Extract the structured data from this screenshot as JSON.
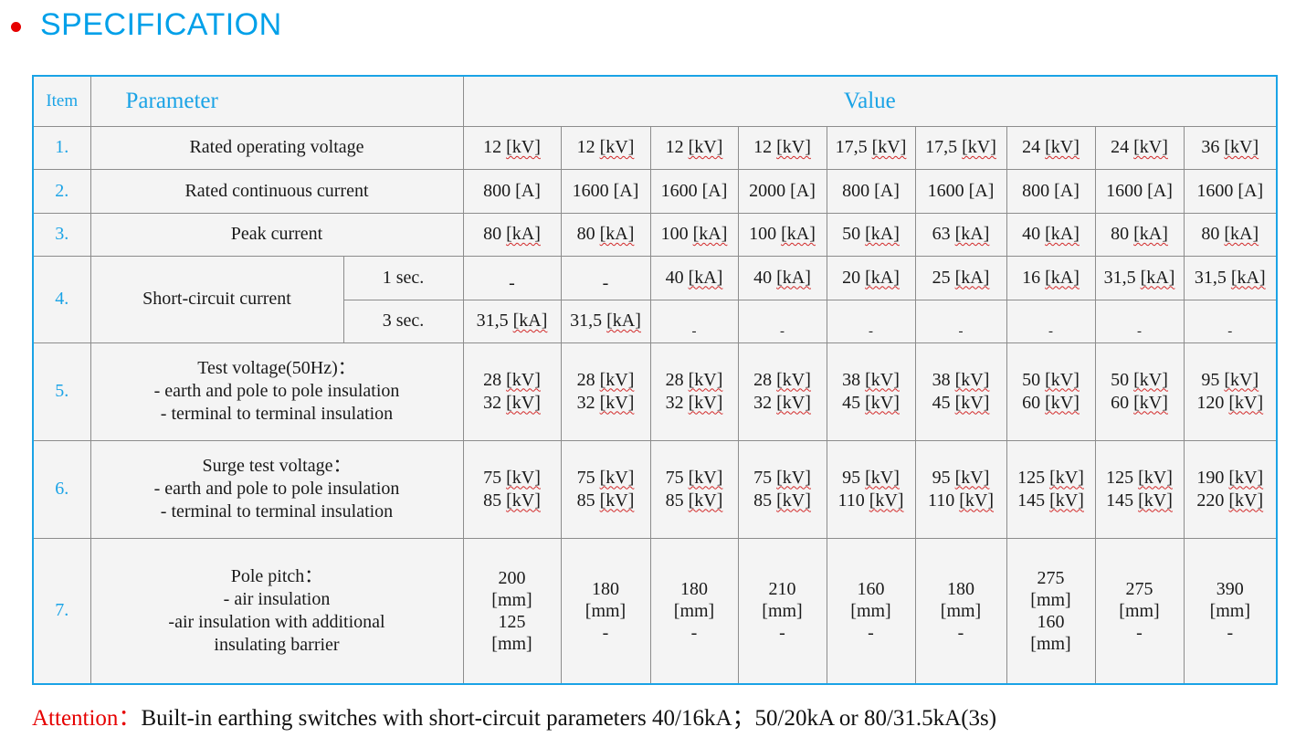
{
  "header": {
    "title": "SPECIFICATION"
  },
  "table": {
    "headers": {
      "item": "Item",
      "parameter": "Parameter",
      "value": "Value"
    },
    "rows": {
      "r1": {
        "no": "1.",
        "label": "Rated operating voltage",
        "values": [
          {
            "v": "12",
            "u": "[kV]"
          },
          {
            "v": "12",
            "u": "[kV]"
          },
          {
            "v": "12",
            "u": "[kV]"
          },
          {
            "v": "12",
            "u": "[kV]"
          },
          {
            "v": "17,5",
            "u": "[kV]"
          },
          {
            "v": "17,5",
            "u": "[kV]"
          },
          {
            "v": "24",
            "u": "[kV]"
          },
          {
            "v": "24",
            "u": "[kV]"
          },
          {
            "v": "36",
            "u": "[kV]"
          }
        ]
      },
      "r2": {
        "no": "2.",
        "label": "Rated continuous current",
        "values": [
          "800 [A]",
          "1600 [A]",
          "1600 [A]",
          "2000 [A]",
          "800 [A]",
          "1600 [A]",
          "800 [A]",
          "1600 [A]",
          "1600 [A]"
        ]
      },
      "r3": {
        "no": "3.",
        "label": "Peak current",
        "values": [
          {
            "v": "80",
            "u": "[kA]"
          },
          {
            "v": "80",
            "u": "[kA]"
          },
          {
            "v": "100",
            "u": "[kA]"
          },
          {
            "v": "100",
            "u": "[kA]"
          },
          {
            "v": "50",
            "u": "[kA]"
          },
          {
            "v": "63",
            "u": "[kA]"
          },
          {
            "v": "40",
            "u": "[kA]"
          },
          {
            "v": "80",
            "u": "[kA]"
          },
          {
            "v": "80",
            "u": "[kA]"
          }
        ]
      },
      "r4": {
        "no": "4.",
        "label": "Short-circuit current",
        "sub1": {
          "label": "1 sec.",
          "values": [
            "-",
            "-",
            {
              "v": "40",
              "u": "[kA]"
            },
            {
              "v": "40",
              "u": "[kA]"
            },
            {
              "v": "20",
              "u": "[kA]"
            },
            {
              "v": "25",
              "u": "[kA]"
            },
            {
              "v": "16",
              "u": "[kA]"
            },
            {
              "v": "31,5",
              "u": "[kA]"
            },
            {
              "v": "31,5",
              "u": "[kA]"
            }
          ]
        },
        "sub3": {
          "label": "3 sec.",
          "values": [
            {
              "v": "31,5",
              "u": "[kA]"
            },
            {
              "v": "31,5",
              "u": "[kA]"
            },
            "-",
            "-",
            "-",
            "-",
            "-",
            "-",
            "-"
          ]
        }
      },
      "r5": {
        "no": "5.",
        "lines": [
          "Test voltage(50Hz)：",
          "- earth and pole to pole insulation",
          "- terminal to terminal insulation"
        ],
        "values": [
          [
            {
              "v": "28",
              "u": "[kV]"
            },
            {
              "v": "32",
              "u": "[kV]"
            }
          ],
          [
            {
              "v": "28",
              "u": "[kV]"
            },
            {
              "v": "32",
              "u": "[kV]"
            }
          ],
          [
            {
              "v": "28",
              "u": "[kV]"
            },
            {
              "v": "32",
              "u": "[kV]"
            }
          ],
          [
            {
              "v": "28",
              "u": "[kV]"
            },
            {
              "v": "32",
              "u": "[kV]"
            }
          ],
          [
            {
              "v": "38",
              "u": "[kV]"
            },
            {
              "v": "45",
              "u": "[kV]"
            }
          ],
          [
            {
              "v": "38",
              "u": "[kV]"
            },
            {
              "v": "45",
              "u": "[kV]"
            }
          ],
          [
            {
              "v": "50",
              "u": "[kV]"
            },
            {
              "v": "60",
              "u": "[kV]"
            }
          ],
          [
            {
              "v": "50",
              "u": "[kV]"
            },
            {
              "v": "60",
              "u": "[kV]"
            }
          ],
          [
            {
              "v": "95",
              "u": "[kV]"
            },
            {
              "v": "120",
              "u": "[kV]"
            }
          ]
        ]
      },
      "r6": {
        "no": "6.",
        "lines": [
          "Surge test voltage：",
          "- earth and pole to pole insulation",
          "- terminal to terminal insulation"
        ],
        "values": [
          [
            {
              "v": "75",
              "u": "[kV]"
            },
            {
              "v": "85",
              "u": "[kV]"
            }
          ],
          [
            {
              "v": "75",
              "u": "[kV]"
            },
            {
              "v": "85",
              "u": "[kV]"
            }
          ],
          [
            {
              "v": "75",
              "u": "[kV]"
            },
            {
              "v": "85",
              "u": "[kV]"
            }
          ],
          [
            {
              "v": "75",
              "u": "[kV]"
            },
            {
              "v": "85",
              "u": "[kV]"
            }
          ],
          [
            {
              "v": "95",
              "u": "[kV]"
            },
            {
              "v": "110",
              "u": "[kV]"
            }
          ],
          [
            {
              "v": "95",
              "u": "[kV]"
            },
            {
              "v": "110",
              "u": "[kV]"
            }
          ],
          [
            {
              "v": "125",
              "u": "[kV]"
            },
            {
              "v": "145",
              "u": "[kV]"
            }
          ],
          [
            {
              "v": "125",
              "u": "[kV]"
            },
            {
              "v": "145",
              "u": "[kV]"
            }
          ],
          [
            {
              "v": "190",
              "u": "[kV]"
            },
            {
              "v": "220",
              "u": "[kV]"
            }
          ]
        ]
      },
      "r7": {
        "no": "7.",
        "lines": [
          "Pole pitch：",
          "- air  insulation",
          "-air insulation with additional",
          "insulating barrier"
        ],
        "values": [
          {
            "a": "200",
            "au": "[mm]",
            "b": "125",
            "bu": "[mm]"
          },
          {
            "a": "180",
            "au": "[mm]",
            "b": "-",
            "bu": ""
          },
          {
            "a": "180",
            "au": "[mm]",
            "b": "-",
            "bu": ""
          },
          {
            "a": "210",
            "au": "[mm]",
            "b": "-",
            "bu": ""
          },
          {
            "a": "160",
            "au": "[mm]",
            "b": "-",
            "bu": ""
          },
          {
            "a": "180",
            "au": "[mm]",
            "b": "-",
            "bu": ""
          },
          {
            "a": "275",
            "au": "[mm]",
            "b": "160",
            "bu": "[mm]"
          },
          {
            "a": "275",
            "au": "[mm]",
            "b": "-",
            "bu": ""
          },
          {
            "a": "390",
            "au": "[mm]",
            "b": "-",
            "bu": ""
          }
        ]
      }
    }
  },
  "attention": {
    "label": "Attention：",
    "text": "Built-in earthing switches with short-circuit parameters 40/16kA；50/20kA or 80/31.5kA(3s)"
  }
}
